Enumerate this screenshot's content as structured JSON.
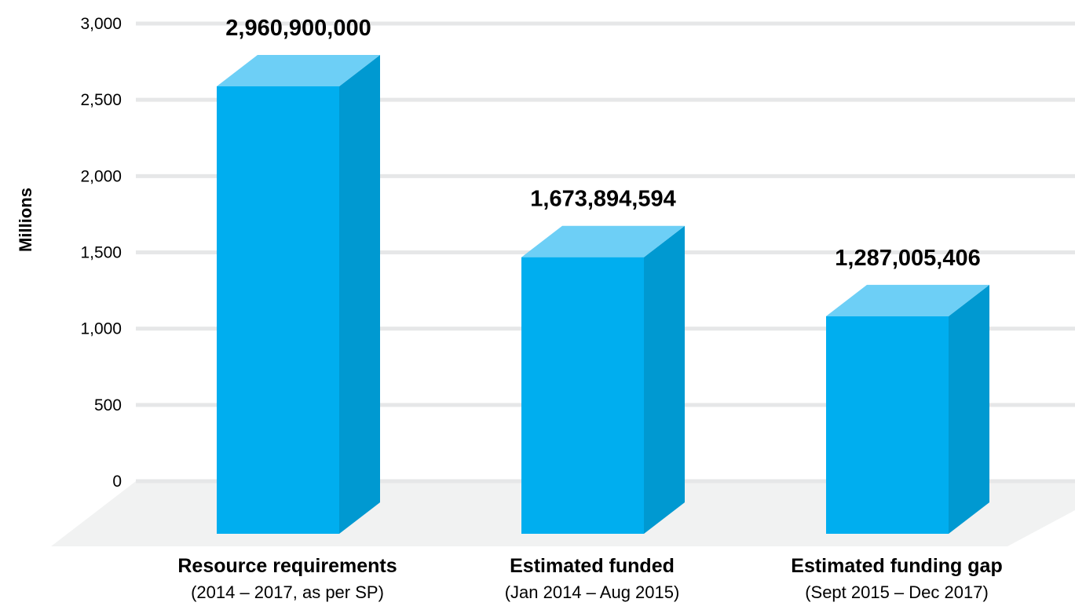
{
  "chart_data": {
    "type": "bar",
    "ylabel": "Millions",
    "ylim": [
      0,
      3000
    ],
    "yticks": [
      0,
      500,
      1000,
      1500,
      2000,
      2500,
      3000
    ],
    "ytick_labels": [
      "0",
      "500",
      "1,000",
      "1,500",
      "2,000",
      "2,500",
      "3,000"
    ],
    "grid": true,
    "categories": [
      "Resource requirements",
      "Estimated funded",
      "Estimated funding gap"
    ],
    "category_subtitles": [
      "(2014 – 2017, as per SP)",
      "(Jan 2014 – Aug 2015)",
      "(Sept 2015 – Dec 2017)"
    ],
    "values": [
      2960.9,
      1673.894594,
      1287.005406
    ],
    "data_labels": [
      "2,960,900,000",
      "1,673,894,594",
      "1,287,005,406"
    ],
    "colors": {
      "bar_front": "#00aeef",
      "bar_side": "#0099d1",
      "bar_top": "#6dcff6",
      "grid": "#e6e7e8",
      "floor": "#f1f2f2"
    }
  }
}
